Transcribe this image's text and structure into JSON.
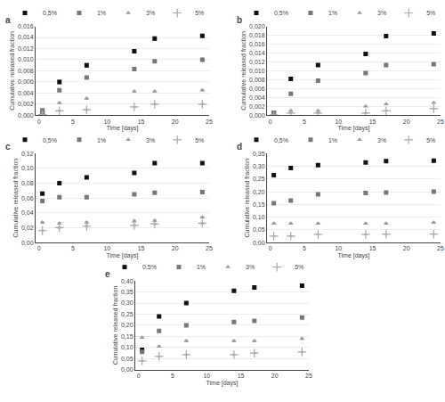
{
  "chart_data": [
    {
      "type": "scatter",
      "title": "a",
      "xlabel": "Time [days]",
      "ylabel": "Cumulative released fraction",
      "x": [
        0.5,
        3,
        7,
        14,
        17,
        24
      ],
      "xlim": [
        -0.5,
        25
      ],
      "xticks": [
        0,
        5,
        10,
        15,
        20,
        25
      ],
      "ylim": [
        0,
        0.016
      ],
      "yticks": [
        {
          "value": 0.0,
          "label": "0,000"
        },
        {
          "value": 0.002,
          "label": "0,002"
        },
        {
          "value": 0.004,
          "label": "0,004"
        },
        {
          "value": 0.006,
          "label": "0,006"
        },
        {
          "value": 0.008,
          "label": "0,008"
        },
        {
          "value": 0.01,
          "label": "0,010"
        },
        {
          "value": 0.012,
          "label": "0,012"
        },
        {
          "value": 0.014,
          "label": "0,014"
        },
        {
          "value": 0.016,
          "label": "0,016"
        }
      ],
      "grid": true,
      "legend": "top right",
      "series": [
        {
          "name": "0,5%",
          "color": "#111111",
          "marker": "square",
          "values": [
            0.00035,
            0.006,
            0.009,
            0.0115,
            0.0138,
            0.0143
          ],
          "yerr": [
            0.0002,
            0.0003,
            0.0003,
            0.0003,
            0.0003,
            0.0002
          ]
        },
        {
          "name": "1%",
          "color": "#777777",
          "marker": "square",
          "values": [
            0.0009,
            0.0045,
            0.0068,
            0.0083,
            0.0097,
            0.01
          ],
          "yerr": [
            0.0002,
            0.0002,
            0.0002,
            0.0002,
            0.0002,
            0.0002
          ]
        },
        {
          "name": "3%",
          "color": "#999999",
          "marker": "triangle-up",
          "values": [
            0.00045,
            0.0022,
            0.003,
            0.0043,
            0.0043,
            0.0045
          ],
          "yerr": [
            0.0001,
            0.0001,
            0.0001,
            0.0001,
            0.0001,
            0.0001
          ]
        },
        {
          "name": "5%",
          "color": "#aaaaaa",
          "marker": "plus",
          "values": [
            0.0001,
            0.0008,
            0.001,
            0.0015,
            0.002,
            0.002
          ],
          "yerr": [
            5e-05,
            0.0001,
            0.0001,
            0.0001,
            0.0001,
            0.0001
          ]
        }
      ]
    },
    {
      "type": "scatter",
      "title": "b",
      "xlabel": "Time [days]",
      "ylabel": "Cumulative released fraction",
      "x": [
        0.5,
        3,
        7,
        14,
        17,
        24
      ],
      "xlim": [
        -0.5,
        25
      ],
      "xticks": [
        0,
        5,
        10,
        15,
        20,
        25
      ],
      "ylim": [
        0,
        0.02
      ],
      "yticks": [
        {
          "value": 0.0,
          "label": "0,000"
        },
        {
          "value": 0.002,
          "label": "0,002"
        },
        {
          "value": 0.004,
          "label": "0,004"
        },
        {
          "value": 0.006,
          "label": "0,006"
        },
        {
          "value": 0.008,
          "label": "0,008"
        },
        {
          "value": 0.01,
          "label": "0,010"
        },
        {
          "value": 0.012,
          "label": "0,012"
        },
        {
          "value": 0.014,
          "label": "0,014"
        },
        {
          "value": 0.016,
          "label": "0,016"
        },
        {
          "value": 0.018,
          "label": "0,018"
        },
        {
          "value": 0.02,
          "label": "0,020"
        }
      ],
      "grid": true,
      "legend": "top right",
      "series": [
        {
          "name": "0,5%",
          "color": "#111111",
          "marker": "square",
          "values": [
            0.0005,
            0.0082,
            0.0113,
            0.0138,
            0.0178,
            0.0184
          ],
          "yerr": [
            0.0002,
            0.0002,
            0.0002,
            0.0002,
            0.0002,
            0.0002
          ]
        },
        {
          "name": "1%",
          "color": "#777777",
          "marker": "square",
          "values": [
            0.00045,
            0.0048,
            0.0078,
            0.0095,
            0.0113,
            0.0115
          ],
          "yerr": [
            0.0001,
            0.0001,
            0.0001,
            0.0001,
            0.0001,
            0.0001
          ]
        },
        {
          "name": "3%",
          "color": "#999999",
          "marker": "triangle-up",
          "values": [
            0.00015,
            0.001,
            0.001,
            0.002,
            0.0025,
            0.0028
          ],
          "yerr": [
            5e-05,
            5e-05,
            5e-05,
            5e-05,
            5e-05,
            5e-05
          ]
        },
        {
          "name": "5%",
          "color": "#aaaaaa",
          "marker": "plus",
          "values": [
            0.0001,
            0.0005,
            0.0005,
            0.0005,
            0.001,
            0.0015
          ],
          "yerr": [
            5e-05,
            5e-05,
            5e-05,
            5e-05,
            5e-05,
            5e-05
          ]
        }
      ]
    },
    {
      "type": "scatter",
      "title": "c",
      "xlabel": "Time [days]",
      "ylabel": "Cumulative released fraction",
      "x": [
        0.5,
        3,
        7,
        14,
        17,
        24
      ],
      "xlim": [
        -0.5,
        25
      ],
      "xticks": [
        0,
        5,
        10,
        15,
        20,
        25
      ],
      "ylim": [
        0,
        0.12
      ],
      "yticks": [
        {
          "value": 0.0,
          "label": "0,00"
        },
        {
          "value": 0.02,
          "label": "0,02"
        },
        {
          "value": 0.04,
          "label": "0,04"
        },
        {
          "value": 0.06,
          "label": "0,06"
        },
        {
          "value": 0.08,
          "label": "0,08"
        },
        {
          "value": 0.1,
          "label": "0,10"
        },
        {
          "value": 0.12,
          "label": "0,12"
        }
      ],
      "grid": true,
      "legend": "top right",
      "series": [
        {
          "name": "0,5%",
          "color": "#111111",
          "marker": "square",
          "values": [
            0.066,
            0.08,
            0.088,
            0.094,
            0.107,
            0.107
          ],
          "yerr": [
            0.001,
            0.001,
            0.001,
            0.001,
            0.001,
            0.001
          ]
        },
        {
          "name": "1%",
          "color": "#777777",
          "marker": "square",
          "values": [
            0.056,
            0.061,
            0.061,
            0.065,
            0.067,
            0.068
          ],
          "yerr": [
            0.001,
            0.001,
            0.001,
            0.001,
            0.001,
            0.001
          ]
        },
        {
          "name": "3%",
          "color": "#999999",
          "marker": "triangle-up",
          "values": [
            0.027,
            0.026,
            0.027,
            0.029,
            0.0295,
            0.034
          ],
          "yerr": [
            0.001,
            0.001,
            0.001,
            0.001,
            0.001,
            0.001
          ]
        },
        {
          "name": "5%",
          "color": "#aaaaaa",
          "marker": "plus",
          "values": [
            0.016,
            0.02,
            0.022,
            0.023,
            0.025,
            0.026
          ],
          "yerr": [
            0.001,
            0.001,
            0.001,
            0.001,
            0.001,
            0.001
          ]
        }
      ]
    },
    {
      "type": "scatter",
      "title": "d",
      "xlabel": "Time [days]",
      "ylabel": "Cumulative released fraction",
      "x": [
        0.5,
        3,
        7,
        14,
        17,
        24
      ],
      "xlim": [
        -0.5,
        25
      ],
      "xticks": [
        0,
        5,
        10,
        15,
        20,
        25
      ],
      "ylim": [
        0.0,
        0.35
      ],
      "yticks": [
        {
          "value": 0.0,
          "label": "0,00"
        },
        {
          "value": 0.05,
          "label": "0,05"
        },
        {
          "value": 0.1,
          "label": "0,10"
        },
        {
          "value": 0.15,
          "label": "0,15"
        },
        {
          "value": 0.2,
          "label": "0,20"
        },
        {
          "value": 0.25,
          "label": "0,25"
        },
        {
          "value": 0.3,
          "label": "0,30"
        },
        {
          "value": 0.35,
          "label": "0,35"
        }
      ],
      "grid": true,
      "legend": "top right",
      "series": [
        {
          "name": "0,5%",
          "color": "#111111",
          "marker": "square",
          "values": [
            0.265,
            0.293,
            0.305,
            0.315,
            0.32,
            0.322
          ],
          "yerr": [
            0.003,
            0.003,
            0.003,
            0.003,
            0.003,
            0.003
          ]
        },
        {
          "name": "1%",
          "color": "#777777",
          "marker": "square",
          "values": [
            0.155,
            0.165,
            0.19,
            0.195,
            0.197,
            0.2
          ],
          "yerr": [
            0.003,
            0.003,
            0.003,
            0.003,
            0.003,
            0.003
          ]
        },
        {
          "name": "3%",
          "color": "#999999",
          "marker": "triangle-up",
          "values": [
            0.075,
            0.075,
            0.075,
            0.075,
            0.075,
            0.078
          ],
          "yerr": [
            0.002,
            0.002,
            0.002,
            0.002,
            0.002,
            0.002
          ]
        },
        {
          "name": "5%",
          "color": "#aaaaaa",
          "marker": "plus",
          "values": [
            0.025,
            0.025,
            0.032,
            0.032,
            0.033,
            0.033
          ],
          "yerr": [
            0.001,
            0.001,
            0.001,
            0.001,
            0.001,
            0.001
          ]
        }
      ]
    },
    {
      "type": "scatter",
      "title": "e",
      "xlabel": "Time [days]",
      "ylabel": "Cumulative released fraction",
      "x": [
        0.5,
        3,
        7,
        14,
        17,
        24
      ],
      "xlim": [
        -0.5,
        25
      ],
      "xticks": [
        0,
        5,
        10,
        15,
        20,
        25
      ],
      "ylim": [
        0,
        0.4
      ],
      "yticks": [
        {
          "value": 0.0,
          "label": "0,00"
        },
        {
          "value": 0.05,
          "label": "0,05"
        },
        {
          "value": 0.1,
          "label": "0,10"
        },
        {
          "value": 0.15,
          "label": "0,15"
        },
        {
          "value": 0.2,
          "label": "0,20"
        },
        {
          "value": 0.25,
          "label": "0,25"
        },
        {
          "value": 0.3,
          "label": "0,30"
        },
        {
          "value": 0.35,
          "label": "0,35"
        },
        {
          "value": 0.4,
          "label": "0,40"
        }
      ],
      "grid": true,
      "legend": "top right",
      "series": [
        {
          "name": "0,5%",
          "color": "#111111",
          "marker": "square",
          "values": [
            0.09,
            0.24,
            0.3,
            0.355,
            0.37,
            0.378
          ],
          "yerr": [
            0.003,
            0.003,
            0.003,
            0.003,
            0.003,
            0.003
          ]
        },
        {
          "name": "1%",
          "color": "#777777",
          "marker": "square",
          "values": [
            0.08,
            0.175,
            0.2,
            0.215,
            0.22,
            0.235
          ],
          "yerr": [
            0.003,
            0.003,
            0.003,
            0.003,
            0.003,
            0.003
          ]
        },
        {
          "name": "3%",
          "color": "#999999",
          "marker": "triangle-up",
          "values": [
            0.145,
            0.105,
            0.13,
            0.13,
            0.13,
            0.14
          ],
          "yerr": [
            0.003,
            0.003,
            0.003,
            0.003,
            0.003,
            0.003
          ]
        },
        {
          "name": "5%",
          "color": "#aaaaaa",
          "marker": "plus",
          "values": [
            0.04,
            0.06,
            0.068,
            0.068,
            0.075,
            0.08
          ],
          "yerr": [
            0.002,
            0.002,
            0.002,
            0.002,
            0.002,
            0.002
          ]
        }
      ]
    }
  ]
}
